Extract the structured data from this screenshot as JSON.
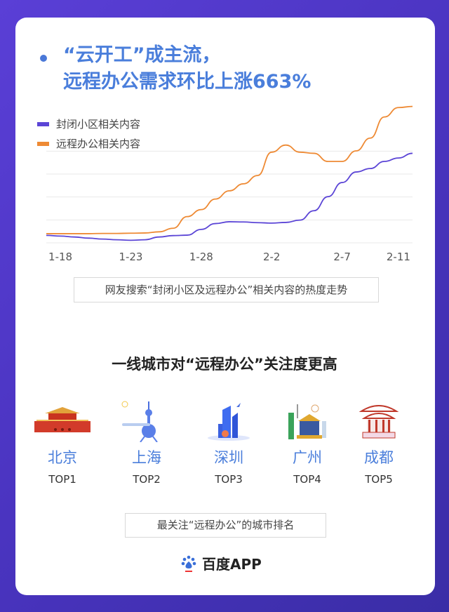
{
  "header": {
    "line1": "“云开工”成主流，",
    "line2": "远程办公需求环比上涨663%"
  },
  "chart_data": {
    "type": "line",
    "x": [
      "1-17",
      "1-18",
      "1-19",
      "1-20",
      "1-21",
      "1-22",
      "1-23",
      "1-24",
      "1-25",
      "1-26",
      "1-27",
      "1-28",
      "1-29",
      "1-30",
      "1-31",
      "2-1",
      "2-2",
      "2-3",
      "2-4",
      "2-5",
      "2-6",
      "2-7",
      "2-8",
      "2-9",
      "2-10",
      "2-11",
      "2-12"
    ],
    "xticks": [
      "1-18",
      "1-23",
      "1-28",
      "2-2",
      "2-7",
      "2-11"
    ],
    "series": [
      {
        "name": "封闭小区相关内容",
        "color": "#5b45d6",
        "values": [
          6.5,
          5.9,
          5.1,
          4.1,
          3.3,
          2.7,
          2.2,
          2.7,
          5.1,
          6.3,
          6.7,
          11.7,
          16.8,
          18.4,
          18.2,
          17.6,
          17.2,
          17.8,
          19.8,
          28,
          40.3,
          52.6,
          61.8,
          64.8,
          71,
          74,
          78.1
        ]
      },
      {
        "name": "远程办公相关内容",
        "color": "#ee8a34",
        "values": [
          8,
          8,
          8,
          8,
          8.2,
          8.2,
          8.4,
          8.6,
          9.6,
          12.7,
          22.9,
          29,
          38.2,
          45.4,
          51.5,
          58.7,
          79.1,
          85.3,
          79.1,
          78.1,
          71,
          71,
          80.2,
          91.4,
          109.8,
          118,
          119
        ]
      }
    ],
    "ylim": [
      0,
      120
    ],
    "grid": true,
    "legend": "top-left",
    "caption": "网友搜索“封闭小区及远程办公”相关内容的热度走势"
  },
  "cities_section": {
    "title": "一线城市对“远程办公”关注度更高",
    "cities": [
      {
        "name": "北京",
        "rank": "TOP1",
        "icon": "tiananmen-icon"
      },
      {
        "name": "上海",
        "rank": "TOP2",
        "icon": "oriental-pearl-tower-icon"
      },
      {
        "name": "深圳",
        "rank": "TOP3",
        "icon": "skyscraper-icon"
      },
      {
        "name": "广州",
        "rank": "TOP4",
        "icon": "guangzhou-landmark-icon"
      },
      {
        "name": "成都",
        "rank": "TOP5",
        "icon": "pavilion-icon"
      }
    ],
    "caption": "最关注“远程办公”的城市排名"
  },
  "footer": {
    "brand": "百度APP"
  },
  "colors": {
    "title": "#4a7edb",
    "background": "#4a34c0"
  }
}
